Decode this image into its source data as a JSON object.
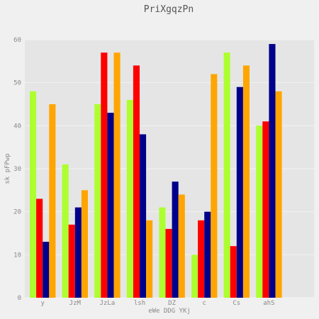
{
  "chart_data": {
    "type": "bar",
    "title": "PriXgqzPn",
    "xlabel": "eWe DDG YKj",
    "ylabel": "sk pFPwp",
    "categories": [
      "y",
      "JzM",
      "JzLa",
      "lsh",
      "DZ",
      "c",
      "Cs",
      "ahS"
    ],
    "series": [
      {
        "values": [
          48,
          31,
          45,
          46,
          21,
          10,
          57,
          40
        ],
        "color": "#adff2f"
      },
      {
        "values": [
          23,
          17,
          57,
          54,
          16,
          18,
          12,
          41
        ],
        "color": "#ff0000"
      },
      {
        "values": [
          13,
          21,
          43,
          38,
          27,
          20,
          49,
          59
        ],
        "color": "#00008b"
      },
      {
        "values": [
          45,
          25,
          57,
          18,
          24,
          52,
          54,
          48
        ],
        "color": "#ffa500"
      }
    ],
    "ylim": [
      0,
      60
    ],
    "yticks": [
      "0",
      "10",
      "20",
      "30",
      "40",
      "50",
      "60"
    ],
    "grid": true,
    "background_color": "#e5e5e5",
    "figure_color": "#f0f0f0"
  }
}
